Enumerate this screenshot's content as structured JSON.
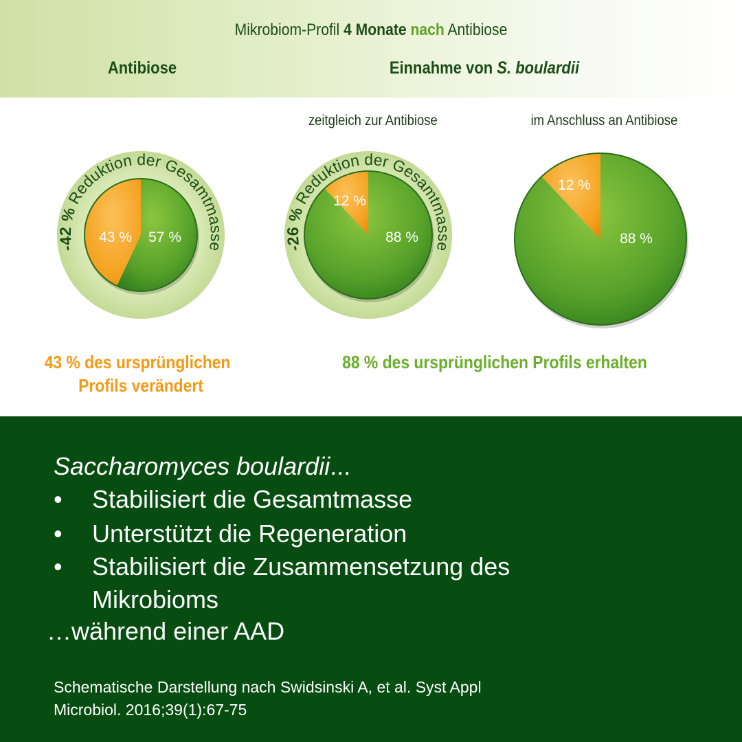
{
  "header": {
    "title_part1": "Mikrobiom-Profil ",
    "title_bold1": "4 Monate",
    "title_space": " ",
    "title_bold2": "nach",
    "title_part2": " Antibiose",
    "col_left": "Antibiose",
    "col_right_prefix": "Einnahme von ",
    "col_right_italic": "S. boulardii",
    "sub_middle": "zeitgleich zur Antibiose",
    "sub_right": "im Anschluss an Antibiose"
  },
  "chart_data": [
    {
      "type": "pie",
      "categories": [
        "verändert",
        "erhalten"
      ],
      "values": [
        43,
        57
      ],
      "labels": [
        "43 %",
        "57 %"
      ],
      "ring_text_bold": "-42 %",
      "ring_text": " Reduktion der Gesamtmasse",
      "ring_value": -42
    },
    {
      "type": "pie",
      "categories": [
        "verändert",
        "erhalten"
      ],
      "values": [
        12,
        88
      ],
      "labels": [
        "12 %",
        "88 %"
      ],
      "ring_text_bold": "-26 %",
      "ring_text": " Reduktion der Gesamtmasse",
      "ring_value": -26
    },
    {
      "type": "pie",
      "categories": [
        "verändert",
        "erhalten"
      ],
      "values": [
        12,
        88
      ],
      "labels": [
        "12 %",
        "88 %"
      ]
    }
  ],
  "colors": {
    "orange": "#f39a14",
    "green": "#5ba52a",
    "dark_green": "#074d11",
    "ring": "#cfe1a6"
  },
  "summary": {
    "left_line1": "43 % des ursprünglichen",
    "left_line2": "Profils verändert",
    "right": "88 % des ursprünglichen Profils erhalten"
  },
  "panel": {
    "lead_italic": "Saccharomyces boulardii",
    "lead_suffix": "...",
    "bullet_symbol": "•",
    "bullets": [
      "Stabilisiert die Gesamtmasse",
      "Unterstützt die Regeneration",
      "Stabilisiert die Zusammensetzung des",
      "Mikrobioms"
    ],
    "tail": "…während einer AAD",
    "reference_line1": "Schematische Darstellung nach Swidsinski A, et al. Syst Appl",
    "reference_line2": "Microbiol. 2016;39(1):67-75"
  }
}
